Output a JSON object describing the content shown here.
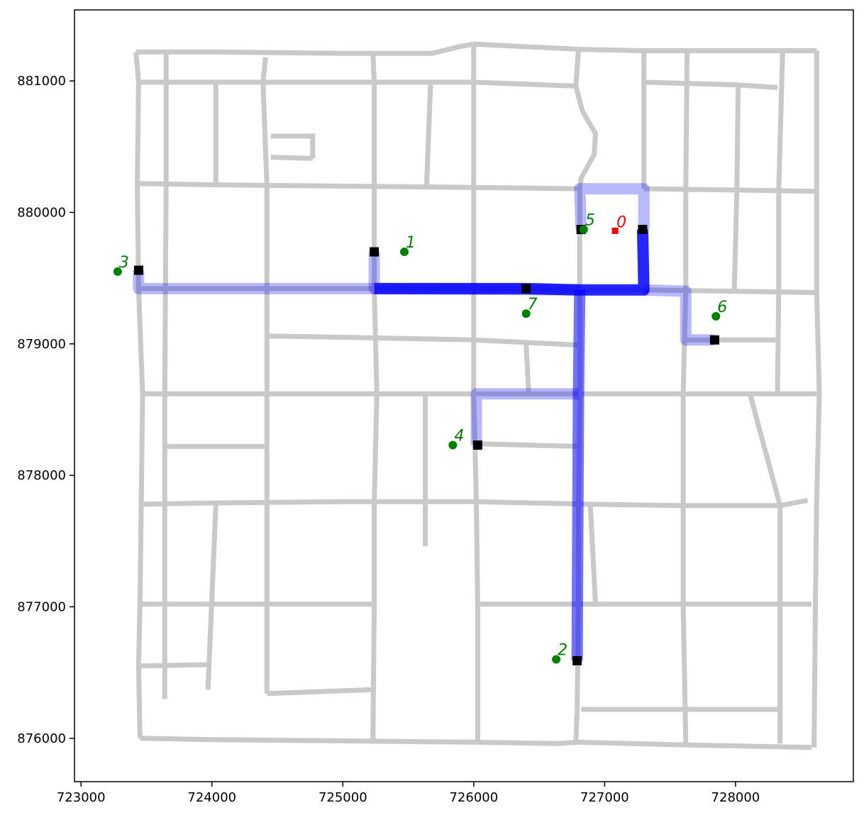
{
  "chart_data": {
    "type": "network-map",
    "xlim": [
      722950,
      728900
    ],
    "ylim": [
      875670,
      881540
    ],
    "x_ticks": [
      723000,
      724000,
      725000,
      726000,
      727000,
      728000
    ],
    "y_ticks": [
      876000,
      877000,
      878000,
      879000,
      880000,
      881000
    ],
    "colors": {
      "street": "#c9c9c9",
      "route": "#0000ff",
      "facility": "#ff0000",
      "demand": "#008000",
      "node": "#000000"
    },
    "streets": [
      [
        [
          723420,
          881220
        ],
        [
          724000,
          881220
        ],
        [
          725000,
          881210
        ],
        [
          725680,
          881210
        ],
        [
          725890,
          881260
        ],
        [
          726000,
          881280
        ],
        [
          726820,
          881240
        ],
        [
          727300,
          881230
        ],
        [
          728000,
          881230
        ],
        [
          728620,
          881230
        ]
      ],
      [
        [
          723440,
          880990
        ],
        [
          725000,
          880990
        ],
        [
          726000,
          880990
        ],
        [
          726800,
          880960
        ]
      ],
      [
        [
          727300,
          880990
        ],
        [
          728000,
          880970
        ],
        [
          728320,
          880950
        ]
      ],
      [
        [
          723430,
          880220
        ],
        [
          724000,
          880210
        ],
        [
          725000,
          880200
        ],
        [
          726000,
          880190
        ],
        [
          726810,
          880180
        ]
      ],
      [
        [
          727300,
          880180
        ],
        [
          728000,
          880170
        ],
        [
          728620,
          880160
        ]
      ],
      [
        [
          723440,
          879420
        ],
        [
          725000,
          879420
        ],
        [
          726400,
          879420
        ],
        [
          726810,
          879410
        ],
        [
          727300,
          879410
        ],
        [
          728000,
          879400
        ],
        [
          728620,
          879390
        ]
      ],
      [
        [
          724420,
          879060
        ],
        [
          725000,
          879050
        ],
        [
          726000,
          879030
        ],
        [
          726820,
          878990
        ]
      ],
      [
        [
          723470,
          878620
        ],
        [
          725000,
          878620
        ],
        [
          726000,
          878620
        ],
        [
          726810,
          878620
        ],
        [
          727600,
          878620
        ],
        [
          728620,
          878620
        ]
      ],
      [
        [
          723650,
          878220
        ],
        [
          724420,
          878220
        ]
      ],
      [
        [
          723460,
          877780
        ],
        [
          724000,
          877790
        ],
        [
          725000,
          877800
        ],
        [
          726000,
          877800
        ],
        [
          726900,
          877780
        ],
        [
          727600,
          877770
        ],
        [
          728340,
          877770
        ],
        [
          728550,
          877810
        ]
      ],
      [
        [
          723450,
          877020
        ],
        [
          725240,
          877020
        ]
      ],
      [
        [
          726030,
          877020
        ],
        [
          727600,
          877020
        ],
        [
          728580,
          877020
        ]
      ],
      [
        [
          723450,
          876550
        ],
        [
          723970,
          876560
        ]
      ],
      [
        [
          724420,
          876340
        ],
        [
          725230,
          876370
        ]
      ],
      [
        [
          726820,
          876220
        ],
        [
          728360,
          876220
        ]
      ],
      [
        [
          723450,
          876000
        ],
        [
          724000,
          875990
        ],
        [
          725000,
          875980
        ],
        [
          726000,
          875970
        ],
        [
          726630,
          875960
        ],
        [
          726800,
          875970
        ],
        [
          727600,
          875950
        ],
        [
          728580,
          875930
        ]
      ],
      [
        [
          724450,
          880580
        ],
        [
          724770,
          880580
        ]
      ],
      [
        [
          724450,
          880420
        ],
        [
          724770,
          880410
        ]
      ],
      [
        [
          723420,
          881220
        ],
        [
          723440,
          880990
        ],
        [
          723430,
          880220
        ],
        [
          723440,
          879420
        ],
        [
          723470,
          878620
        ],
        [
          723460,
          877780
        ],
        [
          723450,
          877020
        ],
        [
          723440,
          876550
        ],
        [
          723450,
          876000
        ]
      ],
      [
        [
          723650,
          881210
        ],
        [
          723650,
          880200
        ],
        [
          723640,
          878620
        ],
        [
          723640,
          877780
        ],
        [
          723640,
          877020
        ],
        [
          723640,
          876300
        ]
      ],
      [
        [
          724030,
          880990
        ],
        [
          724030,
          880220
        ]
      ],
      [
        [
          724030,
          877780
        ],
        [
          723970,
          876370
        ]
      ],
      [
        [
          724410,
          881180
        ],
        [
          724390,
          880990
        ],
        [
          724420,
          880200
        ],
        [
          724420,
          879060
        ],
        [
          724420,
          878620
        ],
        [
          724420,
          877020
        ],
        [
          724420,
          876340
        ]
      ],
      [
        [
          724770,
          880600
        ],
        [
          724770,
          880410
        ]
      ],
      [
        [
          725230,
          881210
        ],
        [
          725240,
          880990
        ],
        [
          725240,
          880200
        ],
        [
          725240,
          879420
        ],
        [
          725260,
          878620
        ],
        [
          725240,
          877800
        ],
        [
          725240,
          877020
        ],
        [
          725230,
          875980
        ]
      ],
      [
        [
          725670,
          880970
        ],
        [
          725640,
          880200
        ]
      ],
      [
        [
          725630,
          878620
        ],
        [
          725630,
          877460
        ]
      ],
      [
        [
          726000,
          881280
        ],
        [
          726000,
          878620
        ],
        [
          726020,
          877800
        ],
        [
          726030,
          877020
        ],
        [
          726030,
          875970
        ]
      ],
      [
        [
          726400,
          879000
        ],
        [
          726420,
          878620
        ]
      ],
      [
        [
          726030,
          878240
        ],
        [
          726810,
          878220
        ]
      ],
      [
        [
          726800,
          881240
        ],
        [
          726780,
          880960
        ],
        [
          726830,
          880770
        ],
        [
          726930,
          880600
        ],
        [
          726920,
          880440
        ],
        [
          726820,
          880260
        ],
        [
          726810,
          880180
        ],
        [
          726810,
          879410
        ],
        [
          726810,
          878620
        ],
        [
          726800,
          877780
        ],
        [
          726800,
          877020
        ],
        [
          726790,
          876220
        ],
        [
          726780,
          875970
        ]
      ],
      [
        [
          727300,
          881230
        ],
        [
          727300,
          880990
        ],
        [
          727300,
          880180
        ]
      ],
      [
        [
          726890,
          877780
        ],
        [
          726930,
          877020
        ]
      ],
      [
        [
          727630,
          881230
        ],
        [
          727620,
          880180
        ],
        [
          727620,
          879410
        ],
        [
          727600,
          878620
        ],
        [
          727600,
          877770
        ],
        [
          727600,
          877020
        ],
        [
          727620,
          875950
        ]
      ],
      [
        [
          727620,
          879030
        ],
        [
          728320,
          879030
        ]
      ],
      [
        [
          728020,
          880950
        ],
        [
          728010,
          880170
        ],
        [
          727990,
          879400
        ]
      ],
      [
        [
          728360,
          881230
        ],
        [
          728330,
          880160
        ],
        [
          728330,
          879390
        ],
        [
          728320,
          878620
        ]
      ],
      [
        [
          728110,
          878620
        ],
        [
          728340,
          877770
        ],
        [
          728340,
          877020
        ],
        [
          728340,
          875960
        ]
      ],
      [
        [
          728620,
          881230
        ],
        [
          728620,
          880160
        ],
        [
          728620,
          879390
        ],
        [
          728640,
          878620
        ],
        [
          728620,
          877810
        ],
        [
          728610,
          877020
        ],
        [
          728600,
          875930
        ]
      ]
    ],
    "routes": [
      {
        "weight": "light",
        "points": [
          [
            723440,
            879560
          ],
          [
            723440,
            879420
          ],
          [
            725240,
            879420
          ]
        ]
      },
      {
        "weight": "light",
        "points": [
          [
            725240,
            879700
          ],
          [
            725240,
            879420
          ],
          [
            726810,
            879410
          ]
        ]
      },
      {
        "weight": "heavy",
        "points": [
          [
            725240,
            879420
          ],
          [
            726400,
            879420
          ],
          [
            726810,
            879410
          ],
          [
            727300,
            879410
          ],
          [
            727290,
            879870
          ]
        ]
      },
      {
        "weight": "light",
        "points": [
          [
            726820,
            879870
          ],
          [
            726810,
            880180
          ],
          [
            727300,
            880180
          ],
          [
            727300,
            879870
          ]
        ]
      },
      {
        "weight": "light",
        "points": [
          [
            727300,
            879410
          ],
          [
            727620,
            879400
          ],
          [
            727620,
            879030
          ],
          [
            727840,
            879030
          ]
        ]
      },
      {
        "weight": "medium",
        "points": [
          [
            726810,
            879410
          ],
          [
            726800,
            878620
          ],
          [
            726790,
            876590
          ]
        ]
      },
      {
        "weight": "light",
        "points": [
          [
            726800,
            878620
          ],
          [
            726020,
            878620
          ],
          [
            726020,
            878230
          ]
        ]
      }
    ],
    "facility": {
      "label": "0",
      "x": 727080,
      "y": 879860
    },
    "demand_points": [
      {
        "label": "1",
        "x": 725470,
        "y": 879700
      },
      {
        "label": "2",
        "x": 726630,
        "y": 876600
      },
      {
        "label": "3",
        "x": 723280,
        "y": 879550
      },
      {
        "label": "4",
        "x": 725840,
        "y": 878230
      },
      {
        "label": "5",
        "x": 726840,
        "y": 879870
      },
      {
        "label": "6",
        "x": 727850,
        "y": 879210
      },
      {
        "label": "7",
        "x": 726400,
        "y": 879230
      }
    ],
    "nodes": [
      {
        "x": 723440,
        "y": 879560
      },
      {
        "x": 725240,
        "y": 879700
      },
      {
        "x": 726400,
        "y": 879420
      },
      {
        "x": 726820,
        "y": 879870
      },
      {
        "x": 727290,
        "y": 879870
      },
      {
        "x": 727840,
        "y": 879030
      },
      {
        "x": 726030,
        "y": 878230
      },
      {
        "x": 726790,
        "y": 876590
      }
    ]
  }
}
